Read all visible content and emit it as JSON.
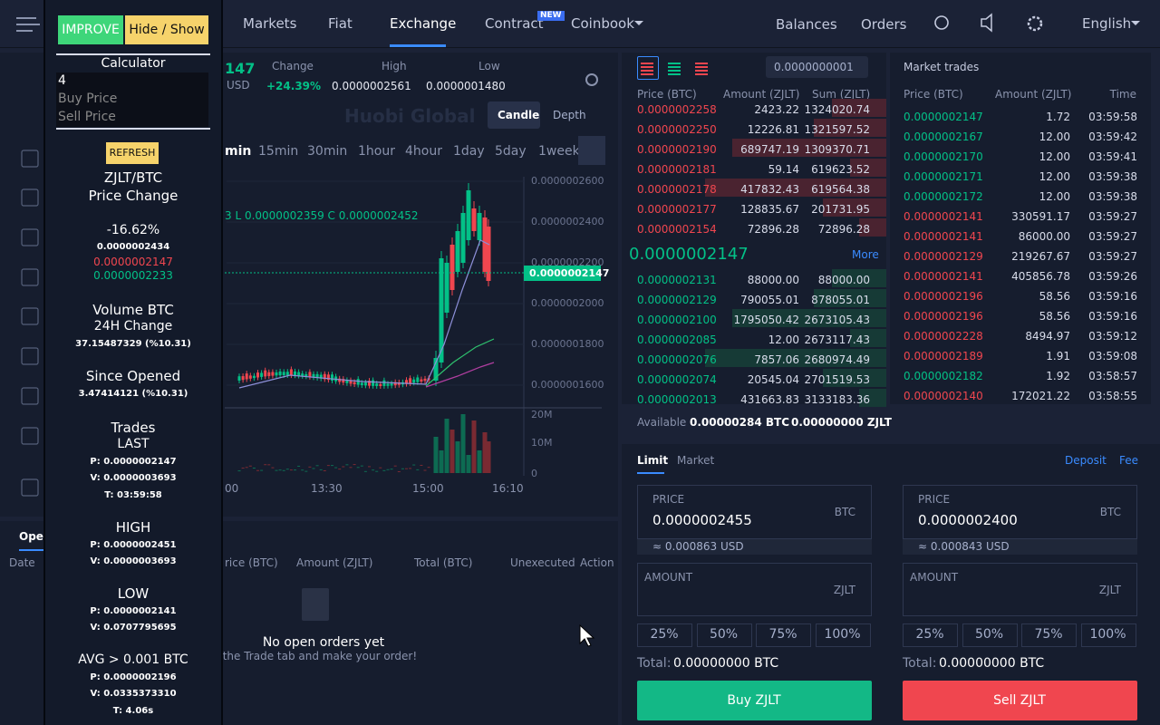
{
  "nav": {
    "items": [
      "Markets",
      "Fiat",
      "Exchange",
      "Contract",
      "Coinbook"
    ],
    "badge": "NEW",
    "right": [
      "Balances",
      "Orders",
      "English"
    ]
  },
  "overlay": {
    "buttons": [
      "IMPROVE",
      "Hide / Show"
    ],
    "calculator": {
      "title": "Calculator",
      "input": "4",
      "buy": "Buy Price",
      "sell": "Sell Price"
    },
    "refresh": "REFRESH",
    "lines": [
      "ZJLT/BTC",
      "Price Change",
      "-16.62%",
      "0.0000002434",
      "0.0000002147",
      "0.0000002233",
      "Volume BTC",
      "24H Change",
      "37.15487329 (%10.31)",
      "Since Opened",
      "3.47414121 (%10.31)",
      "Trades",
      "LAST",
      "P: 0.0000002147",
      "V: 0.0000003693",
      "T: 03:59:58",
      "HIGH",
      "P: 0.0000002451",
      "V: 0.0000003693",
      "LOW",
      "P: 0.0000002141",
      "V: 0.0707795695",
      "AVG > 0.001 BTC",
      "P: 0.0000002196",
      "V: 0.0335373310",
      "T: 4.06s"
    ]
  },
  "ticker": {
    "price": "147",
    "currency": "USD",
    "change_label": "Change",
    "change": "+24.39%",
    "high_label": "High",
    "high": "0.0000002561",
    "low_label": "Low",
    "low": "0.0000001480"
  },
  "chart": {
    "modes": [
      "Candle",
      "Depth"
    ],
    "watermark": "Huobi Global",
    "intervals": [
      "min",
      "15min",
      "30min",
      "1hour",
      "4hour",
      "1day",
      "5day",
      "1week"
    ],
    "legend": "3  L 0.0000002359  C 0.0000002452",
    "price_labels": [
      "0.0000002600",
      "0.0000002400",
      "0.0000002200",
      "0.0000002000",
      "0.0000001800",
      "0.0000001600"
    ],
    "current": "0.0000002147",
    "volume_labels": [
      "20M",
      "10M",
      "0"
    ],
    "time_labels": [
      "00",
      "13:30",
      "15:00",
      "16:10"
    ]
  },
  "orderbook": {
    "precision": "0.0000000001",
    "headers": [
      "Price (BTC)",
      "Amount (ZJLT)",
      "Sum (ZJLT)"
    ],
    "asks": [
      [
        "0.0000002258",
        "2423.22",
        "1324020.74"
      ],
      [
        "0.0000002250",
        "12226.81",
        "1321597.52"
      ],
      [
        "0.0000002190",
        "689747.19",
        "1309370.71"
      ],
      [
        "0.0000002181",
        "59.14",
        "619623.52"
      ],
      [
        "0.0000002178",
        "417832.43",
        "619564.38"
      ],
      [
        "0.0000002177",
        "128835.67",
        "201731.95"
      ],
      [
        "0.0000002154",
        "72896.28",
        "72896.28"
      ]
    ],
    "last": "0.0000002147",
    "more": "More",
    "bids": [
      [
        "0.0000002131",
        "88000.00",
        "88000.00"
      ],
      [
        "0.0000002129",
        "790055.01",
        "878055.01"
      ],
      [
        "0.0000002100",
        "1795050.42",
        "2673105.43"
      ],
      [
        "0.0000002085",
        "12.00",
        "2673117.43"
      ],
      [
        "0.0000002076",
        "7857.06",
        "2680974.49"
      ],
      [
        "0.0000002074",
        "20545.04",
        "2701519.53"
      ],
      [
        "0.0000002013",
        "431663.83",
        "3133183.36"
      ]
    ]
  },
  "trades": {
    "title": "Market trades",
    "headers": [
      "Price (BTC)",
      "Amount (ZJLT)",
      "Time"
    ],
    "rows": [
      {
        "price": "0.0000002147",
        "amount": "1.72",
        "time": "03:59:58",
        "side": "buy"
      },
      {
        "price": "0.0000002167",
        "amount": "12.00",
        "time": "03:59:42",
        "side": "buy"
      },
      {
        "price": "0.0000002170",
        "amount": "12.00",
        "time": "03:59:41",
        "side": "buy"
      },
      {
        "price": "0.0000002171",
        "amount": "12.00",
        "time": "03:59:38",
        "side": "buy"
      },
      {
        "price": "0.0000002172",
        "amount": "12.00",
        "time": "03:59:38",
        "side": "buy"
      },
      {
        "price": "0.0000002141",
        "amount": "330591.17",
        "time": "03:59:27",
        "side": "sell"
      },
      {
        "price": "0.0000002141",
        "amount": "86000.00",
        "time": "03:59:27",
        "side": "sell"
      },
      {
        "price": "0.0000002129",
        "amount": "219267.67",
        "time": "03:59:27",
        "side": "sell"
      },
      {
        "price": "0.0000002141",
        "amount": "405856.78",
        "time": "03:59:26",
        "side": "sell"
      },
      {
        "price": "0.0000002196",
        "amount": "58.56",
        "time": "03:59:16",
        "side": "sell"
      },
      {
        "price": "0.0000002196",
        "amount": "58.56",
        "time": "03:59:16",
        "side": "sell"
      },
      {
        "price": "0.0000002228",
        "amount": "8494.97",
        "time": "03:59:12",
        "side": "sell"
      },
      {
        "price": "0.0000002189",
        "amount": "1.91",
        "time": "03:59:08",
        "side": "sell"
      },
      {
        "price": "0.0000002182",
        "amount": "1.92",
        "time": "03:58:57",
        "side": "buy"
      },
      {
        "price": "0.0000002140",
        "amount": "172021.22",
        "time": "03:58:55",
        "side": "sell"
      }
    ]
  },
  "available": {
    "label": "Available",
    "btc": "0.00000284 BTC",
    "zjlt": "0.00000000 ZJLT"
  },
  "form": {
    "tabs": [
      "Limit",
      "Market"
    ],
    "links": [
      "Deposit",
      "Fee"
    ],
    "sides": [
      {
        "price_label": "PRICE",
        "price": "0.0000002455",
        "price_unit": "BTC",
        "usd": "≈ 0.000863 USD",
        "amount_label": "AMOUNT",
        "amount_unit": "ZJLT",
        "percents": [
          "25%",
          "50%",
          "75%",
          "100%"
        ],
        "total_label": "Total:",
        "total": "0.00000000 BTC",
        "button": "Buy ZJLT"
      },
      {
        "price_label": "PRICE",
        "price": "0.0000002400",
        "price_unit": "BTC",
        "usd": "≈ 0.000843 USD",
        "amount_label": "AMOUNT",
        "amount_unit": "ZJLT",
        "percents": [
          "25%",
          "50%",
          "75%",
          "100%"
        ],
        "total_label": "Total:",
        "total": "0.00000000 BTC",
        "button": "Sell ZJLT"
      }
    ]
  },
  "open_orders": {
    "tab": "Open orders",
    "headers": [
      "Date",
      "rice (BTC)",
      "Amount (ZJLT)",
      "Total (BTC)",
      "Unexecuted",
      "Action"
    ],
    "empty_title": "No open orders yet",
    "empty_hint": "to the Trade tab and make your order!"
  }
}
